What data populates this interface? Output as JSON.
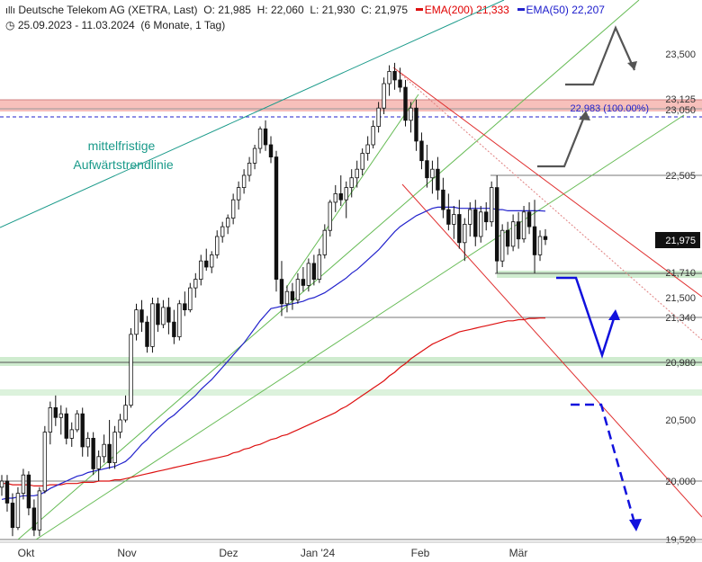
{
  "header": {
    "title": "Deutsche Telekom AG (XETRA, Last)",
    "open_label": "O:",
    "open": "21,985",
    "high_label": "H:",
    "high": "22,060",
    "low_label": "L:",
    "low": "21,930",
    "close_label": "C:",
    "close": "21,975",
    "ema200_label": "EMA(200)",
    "ema200_value": "21,333",
    "ema50_label": "EMA(50)",
    "ema50_value": "22,207",
    "range": "25.09.2023 - 11.03.2024",
    "range_detail": "(6 Monate, 1 Tag)"
  },
  "colors": {
    "candle": "#111111",
    "ema200": "#dd1111",
    "ema50": "#2222cc",
    "trend_teal": "#1a9a8a",
    "trend_green": "#66bb55",
    "channel_red": "#e03030",
    "zone_red": "#f7c0bb",
    "zone_green": "#cfeccf",
    "arrow_blue": "#1111dd",
    "arrow_grey": "#555555",
    "annotation_teal": "#1a9a8a"
  },
  "chart_data": {
    "type": "candlestick",
    "title": "Deutsche Telekom AG (XETRA, Last)",
    "x_tick_labels": [
      "Okt",
      "Nov",
      "Dez",
      "Jan '24",
      "Feb",
      "Mär"
    ],
    "y_axis_labels": [
      "23,500",
      "23,125",
      "23,050",
      "22,505",
      "21,975",
      "21,710",
      "21,500",
      "21,340",
      "20,980",
      "20,500",
      "20,000",
      "19,520"
    ],
    "last_price": "21,975",
    "fib_label": "22,983 (100.00%)",
    "annotation": [
      "mittelfristige",
      "Aufwärtstrendlinie"
    ],
    "levels": [
      23.125,
      23.05,
      22.983,
      22.505,
      21.71,
      21.34,
      20.98,
      20.0,
      19.52
    ],
    "candles": [
      [
        19.95,
        20.05,
        19.88,
        20.0
      ],
      [
        20.0,
        20.05,
        19.75,
        19.82
      ],
      [
        19.82,
        19.9,
        19.55,
        19.62
      ],
      [
        19.62,
        19.95,
        19.6,
        19.9
      ],
      [
        19.9,
        20.1,
        19.85,
        20.05
      ],
      [
        20.05,
        20.08,
        19.72,
        19.78
      ],
      [
        19.78,
        19.85,
        19.55,
        19.6
      ],
      [
        19.6,
        19.95,
        19.55,
        19.92
      ],
      [
        19.92,
        20.45,
        19.9,
        20.4
      ],
      [
        20.4,
        20.65,
        20.3,
        20.6
      ],
      [
        20.6,
        20.7,
        20.45,
        20.52
      ],
      [
        20.52,
        20.62,
        20.38,
        20.55
      ],
      [
        20.55,
        20.6,
        20.3,
        20.35
      ],
      [
        20.35,
        20.48,
        20.28,
        20.42
      ],
      [
        20.42,
        20.58,
        20.4,
        20.55
      ],
      [
        20.55,
        20.6,
        20.2,
        20.28
      ],
      [
        20.28,
        20.4,
        20.2,
        20.35
      ],
      [
        20.35,
        20.4,
        20.05,
        20.1
      ],
      [
        20.1,
        20.25,
        20.0,
        20.2
      ],
      [
        20.2,
        20.38,
        20.15,
        20.3
      ],
      [
        20.3,
        20.5,
        20.1,
        20.15
      ],
      [
        20.15,
        20.45,
        20.1,
        20.4
      ],
      [
        20.4,
        20.55,
        20.35,
        20.5
      ],
      [
        20.5,
        20.7,
        20.48,
        20.62
      ],
      [
        20.62,
        21.25,
        20.6,
        21.2
      ],
      [
        21.2,
        21.45,
        21.15,
        21.4
      ],
      [
        21.4,
        21.48,
        21.22,
        21.3
      ],
      [
        21.3,
        21.35,
        21.05,
        21.1
      ],
      [
        21.1,
        21.5,
        21.05,
        21.45
      ],
      [
        21.45,
        21.5,
        21.22,
        21.28
      ],
      [
        21.28,
        21.48,
        21.25,
        21.42
      ],
      [
        21.42,
        21.5,
        21.2,
        21.3
      ],
      [
        21.3,
        21.4,
        21.12,
        21.18
      ],
      [
        21.18,
        21.48,
        21.15,
        21.45
      ],
      [
        21.45,
        21.55,
        21.35,
        21.4
      ],
      [
        21.4,
        21.62,
        21.38,
        21.58
      ],
      [
        21.58,
        21.7,
        21.5,
        21.65
      ],
      [
        21.65,
        21.85,
        21.6,
        21.8
      ],
      [
        21.8,
        21.9,
        21.72,
        21.75
      ],
      [
        21.75,
        21.88,
        21.7,
        21.85
      ],
      [
        21.85,
        22.05,
        21.82,
        22.0
      ],
      [
        22.0,
        22.12,
        21.95,
        22.08
      ],
      [
        22.08,
        22.18,
        22.02,
        22.15
      ],
      [
        22.15,
        22.35,
        22.1,
        22.3
      ],
      [
        22.3,
        22.45,
        22.22,
        22.4
      ],
      [
        22.4,
        22.55,
        22.35,
        22.5
      ],
      [
        22.5,
        22.65,
        22.45,
        22.6
      ],
      [
        22.6,
        22.75,
        22.55,
        22.72
      ],
      [
        22.72,
        22.9,
        22.68,
        22.88
      ],
      [
        22.88,
        22.95,
        22.7,
        22.75
      ],
      [
        22.75,
        22.82,
        22.6,
        22.65
      ],
      [
        22.65,
        22.7,
        21.55,
        21.65
      ],
      [
        21.65,
        21.8,
        21.35,
        21.45
      ],
      [
        21.45,
        21.6,
        21.38,
        21.55
      ],
      [
        21.55,
        21.62,
        21.4,
        21.48
      ],
      [
        21.48,
        21.7,
        21.45,
        21.65
      ],
      [
        21.65,
        21.75,
        21.55,
        21.6
      ],
      [
        21.6,
        21.82,
        21.55,
        21.78
      ],
      [
        21.78,
        21.85,
        21.6,
        21.65
      ],
      [
        21.65,
        21.9,
        21.62,
        21.85
      ],
      [
        21.85,
        22.1,
        21.82,
        22.05
      ],
      [
        22.05,
        22.3,
        22.0,
        22.28
      ],
      [
        22.28,
        22.42,
        22.2,
        22.35
      ],
      [
        22.35,
        22.5,
        22.25,
        22.3
      ],
      [
        22.3,
        22.45,
        22.15,
        22.4
      ],
      [
        22.4,
        22.55,
        22.32,
        22.48
      ],
      [
        22.48,
        22.62,
        22.4,
        22.55
      ],
      [
        22.55,
        22.72,
        22.5,
        22.68
      ],
      [
        22.68,
        22.82,
        22.62,
        22.75
      ],
      [
        22.75,
        22.95,
        22.72,
        22.9
      ],
      [
        22.9,
        23.1,
        22.85,
        23.05
      ],
      [
        23.05,
        23.3,
        23.0,
        23.25
      ],
      [
        23.25,
        23.4,
        23.15,
        23.35
      ],
      [
        23.35,
        23.42,
        23.2,
        23.28
      ],
      [
        23.28,
        23.38,
        23.18,
        23.22
      ],
      [
        23.22,
        23.28,
        22.9,
        22.95
      ],
      [
        22.95,
        23.1,
        22.85,
        23.05
      ],
      [
        23.05,
        23.12,
        22.7,
        22.78
      ],
      [
        22.78,
        22.85,
        22.55,
        22.62
      ],
      [
        22.62,
        22.75,
        22.4,
        22.48
      ],
      [
        22.48,
        22.62,
        22.35,
        22.55
      ],
      [
        22.55,
        22.65,
        22.3,
        22.38
      ],
      [
        22.38,
        22.48,
        22.15,
        22.22
      ],
      [
        22.22,
        22.35,
        22.05,
        22.1
      ],
      [
        22.1,
        22.25,
        21.98,
        22.18
      ],
      [
        22.18,
        22.3,
        21.9,
        21.95
      ],
      [
        21.95,
        22.15,
        21.8,
        22.1
      ],
      [
        22.1,
        22.28,
        22.0,
        22.22
      ],
      [
        22.22,
        22.3,
        21.92,
        22.0
      ],
      [
        22.0,
        22.25,
        21.95,
        22.2
      ],
      [
        22.2,
        22.28,
        22.05,
        22.12
      ],
      [
        22.12,
        22.45,
        22.08,
        22.4
      ],
      [
        22.4,
        22.5,
        21.7,
        21.8
      ],
      [
        21.8,
        22.1,
        21.75,
        22.05
      ],
      [
        22.05,
        22.12,
        21.85,
        21.92
      ],
      [
        21.92,
        22.18,
        21.88,
        22.12
      ],
      [
        22.12,
        22.2,
        21.9,
        21.98
      ],
      [
        21.98,
        22.25,
        21.95,
        22.2
      ],
      [
        22.2,
        22.28,
        22.02,
        22.08
      ],
      [
        22.08,
        22.3,
        21.7,
        21.85
      ],
      [
        21.85,
        22.05,
        21.8,
        22.0
      ],
      [
        22.0,
        22.06,
        21.93,
        21.975
      ]
    ],
    "ema50_series": [
      19.85,
      19.86,
      19.86,
      19.87,
      19.88,
      19.88,
      19.88,
      19.89,
      19.91,
      19.94,
      19.96,
      19.98,
      20.0,
      20.02,
      20.04,
      20.05,
      20.07,
      20.08,
      20.09,
      20.1,
      20.11,
      20.12,
      20.14,
      20.16,
      20.2,
      20.25,
      20.3,
      20.34,
      20.39,
      20.43,
      20.47,
      20.51,
      20.54,
      20.58,
      20.62,
      20.66,
      20.7,
      20.75,
      20.79,
      20.83,
      20.88,
      20.93,
      20.98,
      21.03,
      21.08,
      21.13,
      21.19,
      21.25,
      21.31,
      21.36,
      21.41,
      21.42,
      21.43,
      21.44,
      21.45,
      21.46,
      21.47,
      21.49,
      21.5,
      21.52,
      21.54,
      21.57,
      21.6,
      21.63,
      21.66,
      21.7,
      21.73,
      21.77,
      21.81,
      21.85,
      21.89,
      21.94,
      21.99,
      22.04,
      22.08,
      22.11,
      22.14,
      22.17,
      22.19,
      22.21,
      22.23,
      22.24,
      22.24,
      22.24,
      22.24,
      22.23,
      22.23,
      22.23,
      22.23,
      22.23,
      22.23,
      22.23,
      22.22,
      22.22,
      22.21,
      22.21,
      22.21,
      22.21,
      22.21,
      22.21,
      22.21,
      22.207
    ],
    "ema200_series": [
      19.98,
      19.98,
      19.97,
      19.97,
      19.97,
      19.97,
      19.96,
      19.96,
      19.96,
      19.97,
      19.97,
      19.97,
      19.98,
      19.98,
      19.98,
      19.99,
      19.99,
      19.99,
      20.0,
      20.0,
      20.0,
      20.01,
      20.01,
      20.02,
      20.03,
      20.04,
      20.05,
      20.06,
      20.07,
      20.08,
      20.09,
      20.1,
      20.11,
      20.12,
      20.13,
      20.14,
      20.15,
      20.16,
      20.17,
      20.18,
      20.19,
      20.2,
      20.21,
      20.23,
      20.24,
      20.26,
      20.27,
      20.29,
      20.3,
      20.32,
      20.34,
      20.35,
      20.37,
      20.38,
      20.4,
      20.42,
      20.44,
      20.46,
      20.48,
      20.5,
      20.52,
      20.54,
      20.56,
      20.59,
      20.61,
      20.64,
      20.67,
      20.7,
      20.73,
      20.76,
      20.79,
      20.82,
      20.86,
      20.89,
      20.93,
      20.96,
      21.0,
      21.03,
      21.06,
      21.09,
      21.12,
      21.14,
      21.16,
      21.18,
      21.2,
      21.22,
      21.23,
      21.24,
      21.25,
      21.26,
      21.27,
      21.28,
      21.29,
      21.3,
      21.31,
      21.31,
      21.32,
      21.32,
      21.33,
      21.33,
      21.333,
      21.333
    ]
  }
}
